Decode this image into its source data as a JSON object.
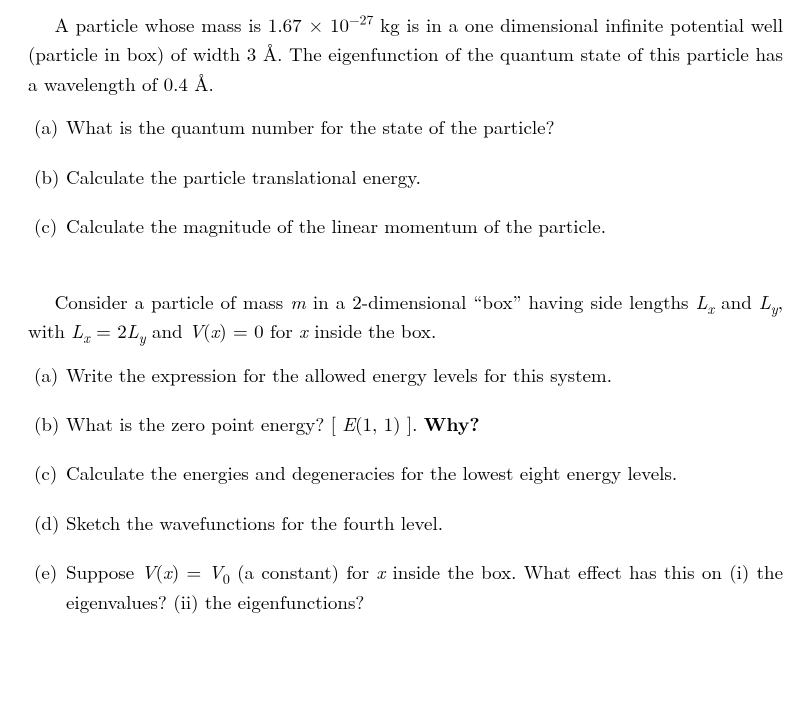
{
  "typography": {
    "font_family": "Computer Modern / Latin Modern (serif)",
    "font_size_pt": 14,
    "line_height": 1.55,
    "text_color": "#000000",
    "background_color": "#ffffff",
    "justify": true
  },
  "problem1": {
    "intro_html": "A particle whose mass is 1.67 × 10<span class=\"sup\">−27</span> kg is in a one dimensional infinite potential well (particle in box) of width 3 Å. The eigenfunction of the quantum state of this particle has a wavelength of 0.4 Å.",
    "parts": {
      "a": {
        "lbl": "(a)",
        "html": "What is the quantum number for the state of the particle?"
      },
      "b": {
        "lbl": "(b)",
        "html": "Calculate the particle translational energy."
      },
      "c": {
        "lbl": "(c)",
        "html": "Calculate the magnitude of the linear momentum of the particle."
      }
    }
  },
  "problem2": {
    "intro_html": "Consider a particle of mass <i class=\"var\">m</i> in a 2-dimensional “box” having side lengths <i class=\"var\">L<span class=\"sub\">x</span></i> and <i class=\"var\">L<span class=\"sub\">y</span></i>, with <i class=\"var\">L<span class=\"sub\">x</span></i> = 2<i class=\"var\">L<span class=\"sub\">y</span></i> and <i class=\"var\">V</i>(<i class=\"var\">x</i>) = 0 for <i class=\"var\">x</i> inside the box.",
    "parts": {
      "a": {
        "lbl": "(a)",
        "html": "Write the expression for the allowed energy levels for this system."
      },
      "b": {
        "lbl": "(b)",
        "html": "What is the zero point energy?  [ <i class=\"var\">E</i>(1, 1) ].  <span class=\"bold\">Why?</span>"
      },
      "c": {
        "lbl": "(c)",
        "html": "Calculate the energies and degeneracies for the lowest eight energy levels."
      },
      "d": {
        "lbl": "(d)",
        "html": "Sketch the wavefunctions for the fourth level."
      },
      "e": {
        "lbl": "(e)",
        "html": "Suppose <i class=\"var\">V</i>(<i class=\"var\">x</i>) = <i class=\"var\">V</i><span class=\"sub\">0</span> (a constant) for <i class=\"var\">x</i> inside the box. What effect has this on (i) the eigenvalues? (ii) the eigenfunctions?"
      }
    }
  }
}
